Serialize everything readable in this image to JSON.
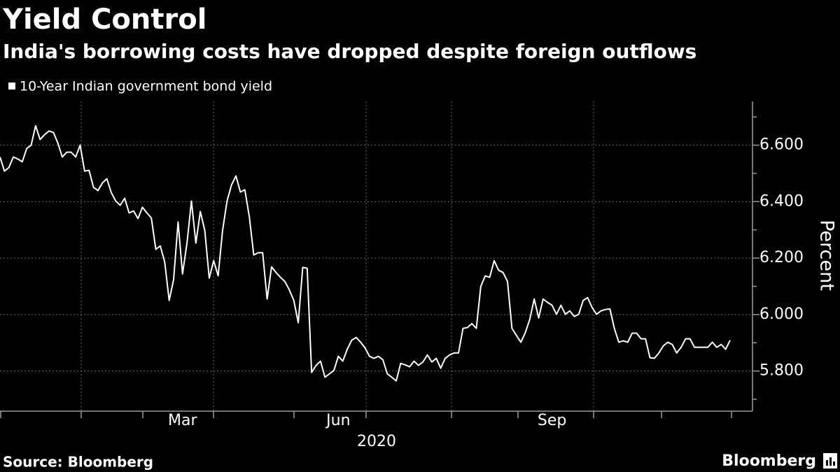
{
  "chart_data": {
    "type": "line",
    "title": "Yield Control",
    "subtitle": "India's borrowing costs have dropped despite foreign outflows",
    "y_axis_label": "Percent",
    "x_axis_label": "2020",
    "source": "Source: Bloomberg",
    "brand": "Bloomberg",
    "categories": [
      null,
      null,
      null,
      null,
      null,
      null,
      null,
      null,
      null,
      null,
      null,
      null,
      null,
      null,
      null,
      null,
      null,
      null,
      null,
      null,
      null,
      null,
      null,
      null,
      null,
      null,
      null,
      null,
      null,
      null,
      null,
      null,
      null,
      null,
      null,
      null,
      null,
      null,
      null,
      null,
      null,
      "Mar",
      null,
      null,
      null,
      null,
      null,
      null,
      null,
      null,
      null,
      null,
      null,
      null,
      null,
      null,
      null,
      null,
      null,
      null,
      null,
      null,
      null,
      null,
      null,
      null,
      null,
      null,
      null,
      null,
      null,
      null,
      null,
      null,
      null,
      null,
      "Jun",
      null,
      null,
      null,
      null,
      null,
      null,
      null,
      null,
      null,
      null,
      null,
      null,
      null,
      null,
      null,
      null,
      null,
      null,
      null,
      null,
      null,
      null,
      null,
      null,
      null,
      null,
      null,
      null,
      null,
      null,
      null,
      null,
      null,
      null,
      null,
      null,
      null,
      null,
      null,
      null,
      null,
      null,
      null,
      null,
      null,
      null,
      null,
      "Sep",
      null,
      null,
      null,
      null,
      null,
      null,
      null,
      null,
      null,
      null,
      null,
      null,
      null,
      null,
      null,
      null,
      null,
      null,
      null,
      null,
      null,
      null,
      null,
      null,
      null,
      null,
      null,
      null,
      null,
      null,
      null,
      null,
      null,
      null,
      null,
      null,
      null,
      null,
      null,
      null
    ],
    "series": [
      {
        "name": "10-Year Indian government bond yield",
        "color": "#ffffff",
        "values": [
          6.558,
          6.508,
          6.521,
          6.558,
          6.551,
          6.541,
          6.588,
          6.6,
          6.669,
          6.62,
          6.637,
          6.65,
          6.645,
          6.607,
          6.558,
          6.575,
          6.575,
          6.558,
          6.6,
          6.508,
          6.511,
          6.451,
          6.439,
          6.466,
          6.481,
          6.432,
          6.402,
          6.387,
          6.412,
          6.36,
          6.367,
          6.34,
          6.38,
          6.36,
          6.342,
          6.231,
          6.243,
          6.186,
          6.05,
          6.124,
          6.328,
          6.144,
          6.253,
          6.402,
          6.253,
          6.365,
          6.298,
          6.129,
          6.191,
          6.137,
          6.298,
          6.402,
          6.459,
          6.491,
          6.434,
          6.442,
          6.347,
          6.211,
          6.219,
          6.219,
          6.055,
          6.169,
          6.149,
          6.132,
          6.117,
          6.087,
          6.05,
          5.971,
          6.167,
          6.164,
          5.795,
          5.82,
          5.835,
          5.778,
          5.79,
          5.802,
          5.852,
          5.835,
          5.877,
          5.909,
          5.919,
          5.902,
          5.882,
          5.852,
          5.845,
          5.852,
          5.84,
          5.79,
          5.778,
          5.765,
          5.827,
          5.822,
          5.815,
          5.835,
          5.82,
          5.832,
          5.857,
          5.832,
          5.845,
          5.81,
          5.845,
          5.857,
          5.864,
          5.864,
          5.951,
          5.954,
          5.968,
          5.951,
          6.1,
          6.137,
          6.132,
          6.191,
          6.157,
          6.149,
          6.117,
          5.951,
          5.926,
          5.902,
          5.936,
          5.983,
          6.055,
          5.988,
          6.055,
          6.043,
          6.033,
          6.001,
          6.033,
          6.001,
          6.013,
          5.993,
          6.001,
          6.05,
          6.06,
          6.025,
          6.001,
          6.013,
          6.018,
          6.02,
          5.951,
          5.902,
          5.907,
          5.902,
          5.934,
          5.934,
          5.914,
          5.914,
          5.847,
          5.845,
          5.864,
          5.889,
          5.902,
          5.894,
          5.864,
          5.884,
          5.914,
          5.914,
          5.884,
          5.884,
          5.884,
          5.884,
          5.902,
          5.884,
          5.894,
          5.877,
          5.909
        ]
      }
    ],
    "ylim": [
      5.69,
      6.755
    ],
    "yticks": [
      {
        "value": 5.8,
        "label": "5.800"
      },
      {
        "value": 6.0,
        "label": "6.000"
      },
      {
        "value": 6.2,
        "label": "6.200"
      },
      {
        "value": 6.4,
        "label": "6.400"
      },
      {
        "value": 6.6,
        "label": "6.600"
      }
    ],
    "yminorticks": [
      5.7,
      5.9,
      6.1,
      6.3,
      6.5,
      6.7
    ],
    "y_axis_side": "right",
    "grid": true
  }
}
